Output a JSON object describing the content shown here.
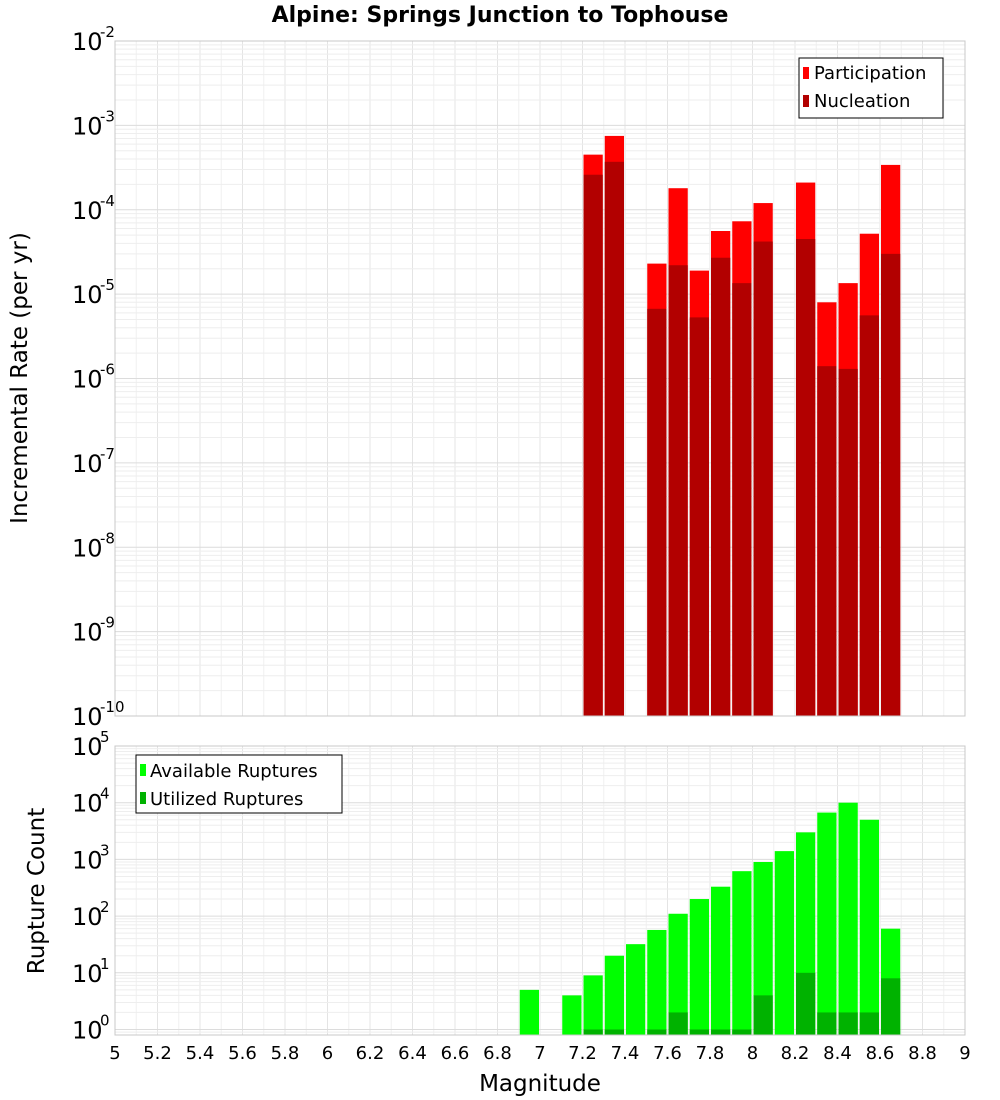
{
  "chart_data": [
    {
      "type": "bar",
      "title": "Alpine: Springs Junction to Tophouse",
      "xlabel": "Magnitude",
      "ylabel": "Incremental Rate (per yr)",
      "yscale": "log",
      "xlim": [
        5,
        9
      ],
      "ylim": [
        1e-10,
        0.01
      ],
      "grid": true,
      "legend_position": "top-right",
      "x": [
        7.25,
        7.35,
        7.55,
        7.65,
        7.75,
        7.85,
        7.95,
        8.05,
        8.25,
        8.35,
        8.45,
        8.55,
        8.65
      ],
      "series": [
        {
          "name": "Participation",
          "color": "#ff0000",
          "values": [
            0.00045,
            0.00075,
            2.3e-05,
            0.00018,
            1.9e-05,
            5.6e-05,
            7.3e-05,
            0.00012,
            0.00021,
            8e-06,
            1.35e-05,
            5.2e-05,
            0.00034
          ]
        },
        {
          "name": "Nucleation",
          "color": "#b20000",
          "values": [
            0.00026,
            0.00037,
            6.7e-06,
            2.2e-05,
            5.3e-06,
            2.7e-05,
            1.35e-05,
            4.2e-05,
            4.5e-05,
            1.4e-06,
            1.3e-06,
            5.6e-06,
            3e-05
          ]
        }
      ]
    },
    {
      "type": "bar",
      "title": "",
      "xlabel": "Magnitude",
      "ylabel": "Rupture Count",
      "yscale": "log",
      "xlim": [
        5,
        9
      ],
      "ylim": [
        0.8,
        100000.0
      ],
      "grid": true,
      "legend_position": "top-left",
      "x": [
        6.95,
        7.15,
        7.25,
        7.35,
        7.45,
        7.55,
        7.65,
        7.75,
        7.85,
        7.95,
        8.05,
        8.15,
        8.25,
        8.35,
        8.45,
        8.55,
        8.65
      ],
      "series": [
        {
          "name": "Available Ruptures",
          "color": "#00ff00",
          "values": [
            5,
            4,
            9,
            20,
            32,
            57,
            110,
            200,
            330,
            620,
            900,
            1400,
            3000,
            6700,
            10000,
            5000,
            60
          ]
        },
        {
          "name": "Utilized Ruptures",
          "color": "#00b200",
          "values": [
            0,
            0,
            1,
            1,
            0,
            1,
            2,
            1,
            1,
            1,
            4,
            0,
            10,
            2,
            2,
            2,
            8
          ]
        }
      ]
    }
  ],
  "axes": {
    "x_ticks": [
      "5",
      "5.2",
      "5.4",
      "5.6",
      "5.8",
      "6",
      "6.2",
      "6.4",
      "6.6",
      "6.8",
      "7",
      "7.2",
      "7.4",
      "7.6",
      "7.8",
      "8",
      "8.2",
      "8.4",
      "8.6",
      "8.8",
      "9"
    ],
    "top_y_exponents": [
      "-2",
      "-3",
      "-4",
      "-5",
      "-6",
      "-7",
      "-8",
      "-9",
      "-10"
    ],
    "bottom_y_exponents": [
      "5",
      "4",
      "3",
      "2",
      "1",
      "0"
    ],
    "y_base": "10"
  }
}
